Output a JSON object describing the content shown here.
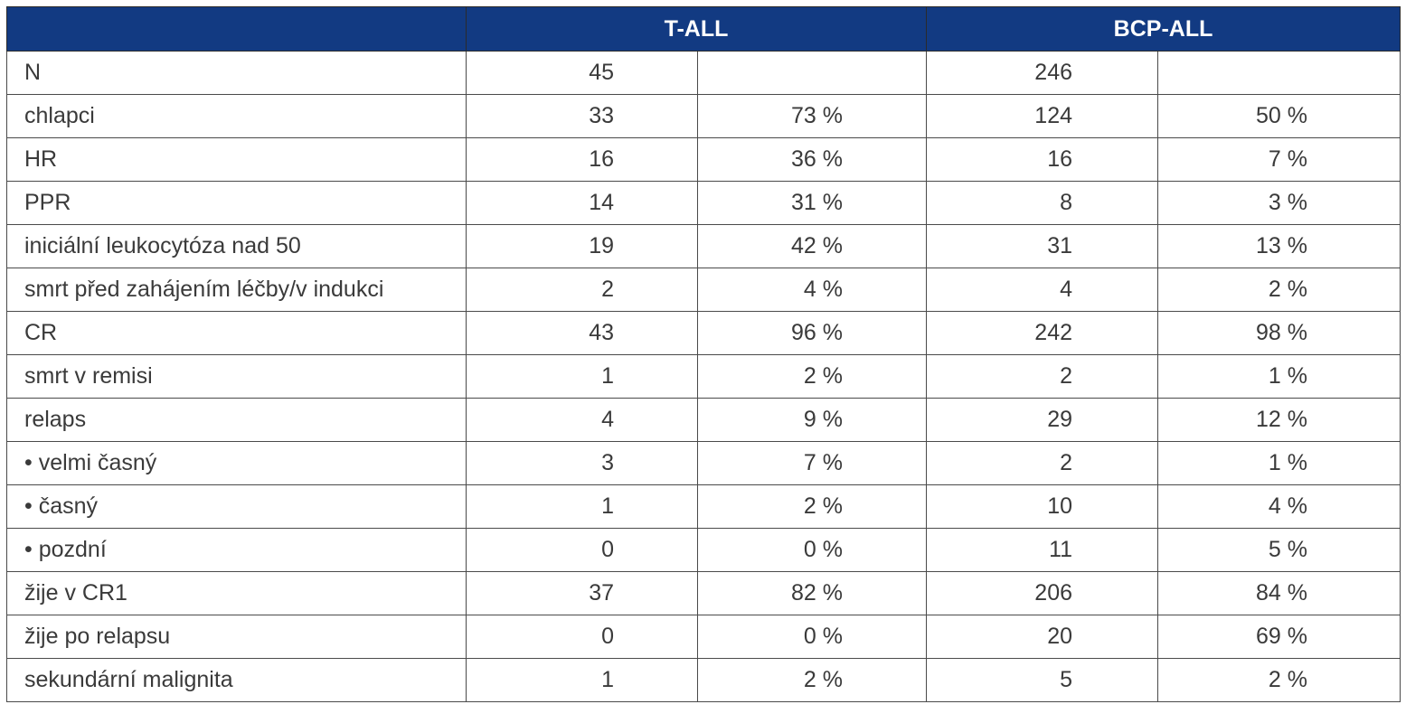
{
  "header": {
    "corner": "",
    "group1": "T-ALL",
    "group2": "BCP-ALL"
  },
  "rows": [
    {
      "label": "N",
      "t_n": "45",
      "t_pct": "",
      "b_n": "246",
      "b_pct": ""
    },
    {
      "label": "chlapci",
      "t_n": "33",
      "t_pct": "73 %",
      "b_n": "124",
      "b_pct": "50 %"
    },
    {
      "label": "HR",
      "t_n": "16",
      "t_pct": "36 %",
      "b_n": "16",
      "b_pct": "7 %"
    },
    {
      "label": "PPR",
      "t_n": "14",
      "t_pct": "31 %",
      "b_n": "8",
      "b_pct": "3 %"
    },
    {
      "label": "iniciální leukocytóza nad 50",
      "t_n": "19",
      "t_pct": "42 %",
      "b_n": "31",
      "b_pct": "13 %"
    },
    {
      "label": "smrt před zahájením léčby/v indukci",
      "t_n": "2",
      "t_pct": "4 %",
      "b_n": "4",
      "b_pct": "2 %"
    },
    {
      "label": "CR",
      "t_n": "43",
      "t_pct": "96 %",
      "b_n": "242",
      "b_pct": "98 %"
    },
    {
      "label": "smrt v remisi",
      "t_n": "1",
      "t_pct": "2 %",
      "b_n": "2",
      "b_pct": "1 %"
    },
    {
      "label": "relaps",
      "t_n": "4",
      "t_pct": "9 %",
      "b_n": "29",
      "b_pct": "12 %"
    },
    {
      "label": "• velmi časný",
      "t_n": "3",
      "t_pct": "7 %",
      "b_n": "2",
      "b_pct": "1 %"
    },
    {
      "label": "• časný",
      "t_n": "1",
      "t_pct": "2 %",
      "b_n": "10",
      "b_pct": "4 %"
    },
    {
      "label": "• pozdní",
      "t_n": "0",
      "t_pct": "0 %",
      "b_n": "11",
      "b_pct": "5 %"
    },
    {
      "label": "žije v CR1",
      "t_n": "37",
      "t_pct": "82 %",
      "b_n": "206",
      "b_pct": "84 %"
    },
    {
      "label": "žije po relapsu",
      "t_n": "0",
      "t_pct": "0 %",
      "b_n": "20",
      "b_pct": "69 %"
    },
    {
      "label": "sekundární malignita",
      "t_n": "1",
      "t_pct": "2 %",
      "b_n": "5",
      "b_pct": "2 %"
    }
  ]
}
